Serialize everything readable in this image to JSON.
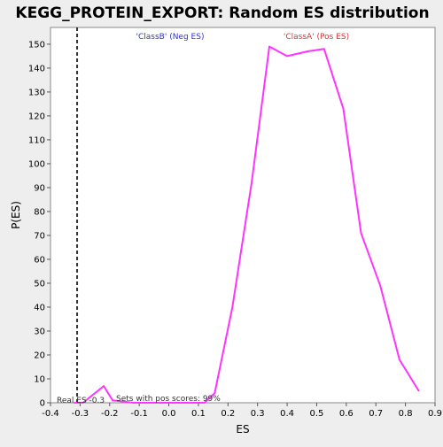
{
  "chart_data": {
    "type": "line",
    "title": "KEGG_PROTEIN_EXPORT: Random ES distribution",
    "xlabel": "ES",
    "ylabel": "P(ES)",
    "xlim": [
      -0.4,
      0.9
    ],
    "ylim": [
      0,
      157
    ],
    "xticks": [
      -0.4,
      -0.3,
      -0.2,
      -0.1,
      0.0,
      0.1,
      0.2,
      0.3,
      0.4,
      0.5,
      0.6,
      0.7,
      0.8,
      0.9
    ],
    "xtick_labels": [
      "-0.4",
      "-0.3",
      "-0.2",
      "-0.1",
      "0.0",
      "0.1",
      "0.2",
      "0.3",
      "0.4",
      "0.5",
      "0.6",
      "0.7",
      "0.8",
      "0.9"
    ],
    "yticks": [
      0,
      10,
      20,
      30,
      40,
      50,
      60,
      70,
      80,
      90,
      100,
      110,
      120,
      130,
      140,
      150
    ],
    "ytick_labels": [
      "0",
      "10",
      "20",
      "30",
      "40",
      "50",
      "60",
      "70",
      "80",
      "90",
      "100",
      "110",
      "120",
      "130",
      "140",
      "150"
    ],
    "grid": false,
    "series": [
      {
        "color": "#ff33ff",
        "x": [
          -0.32,
          -0.29,
          -0.22,
          -0.19,
          -0.12,
          -0.06,
          0.0,
          0.06,
          0.12,
          0.155,
          0.215,
          0.28,
          0.34,
          0.4,
          0.47,
          0.525,
          0.59,
          0.65,
          0.715,
          0.78,
          0.845
        ],
        "y": [
          0,
          0,
          7,
          1,
          0,
          0,
          0,
          0,
          0,
          4,
          40,
          92,
          149,
          145,
          147,
          148,
          123,
          71,
          49,
          18,
          5
        ]
      }
    ],
    "reference_line": {
      "x": -0.31,
      "style": "dashed",
      "color": "#333333"
    },
    "annotations": {
      "neg_label": "'ClassB' (Neg ES)",
      "neg_color": "#3333cc",
      "pos_label": "'ClassA' (Pos ES)",
      "pos_color": "#dd3333",
      "real_es": "Real ES -0.3",
      "pos_scores": "Sets with pos scores: 99%"
    }
  }
}
